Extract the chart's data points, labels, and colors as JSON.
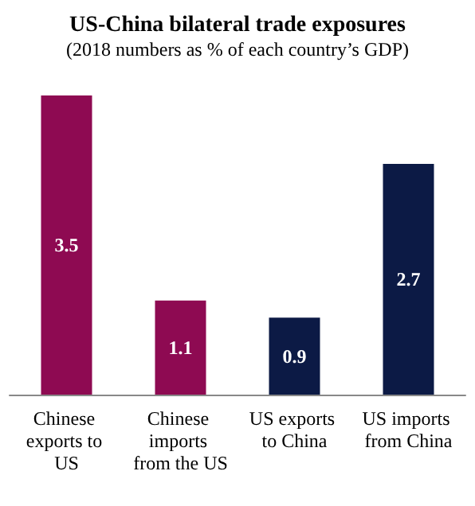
{
  "chart_data": {
    "type": "bar",
    "title": "US-China bilateral trade exposures",
    "subtitle": "(2018 numbers as % of each country’s GDP)",
    "categories": [
      "Chinese exports to US",
      "Chinese imports from the US",
      "US exports to China",
      "US imports from China"
    ],
    "values": [
      3.5,
      1.1,
      0.9,
      2.7
    ],
    "colors": [
      "#8e0a52",
      "#8e0a52",
      "#0c1a45",
      "#0c1a45"
    ],
    "data_labels": true
  }
}
